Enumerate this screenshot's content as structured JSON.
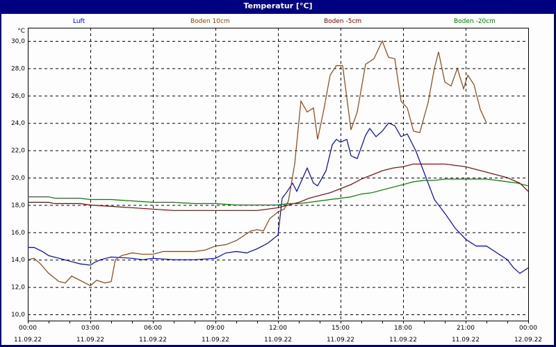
{
  "window": {
    "title": "Temperatur [°C]"
  },
  "chart_data": {
    "type": "line",
    "title": "Temperatur [°C]",
    "xlabel": "",
    "ylabel": "°C",
    "ylim": [
      10,
      30
    ],
    "yticks": [
      "10,0",
      "12,0",
      "14,0",
      "16,0",
      "18,0",
      "20,0",
      "22,0",
      "24,0",
      "26,0",
      "28,0",
      "30,0"
    ],
    "xlim_hours": [
      0,
      24
    ],
    "xticks": [
      {
        "time": "00:00",
        "date": "11.09.22"
      },
      {
        "time": "03:00",
        "date": "11.09.22"
      },
      {
        "time": "06:00",
        "date": "11.09.22"
      },
      {
        "time": "09:00",
        "date": "11.09.22"
      },
      {
        "time": "12:00",
        "date": "11.09.22"
      },
      {
        "time": "15:00",
        "date": "11.09.22"
      },
      {
        "time": "18:00",
        "date": "11.09.22"
      },
      {
        "time": "21:00",
        "date": "11.09.22"
      },
      {
        "time": "00:00",
        "date": "12.09.22"
      }
    ],
    "grid": true,
    "legend_position": "top",
    "series": [
      {
        "name": "Luft",
        "color": "#0000cc",
        "points": [
          [
            0,
            14.9
          ],
          [
            0.3,
            14.9
          ],
          [
            0.7,
            14.6
          ],
          [
            1.0,
            14.3
          ],
          [
            1.5,
            14.1
          ],
          [
            2.0,
            13.9
          ],
          [
            2.5,
            13.7
          ],
          [
            3.0,
            13.6
          ],
          [
            3.2,
            13.8
          ],
          [
            3.5,
            14.0
          ],
          [
            4.0,
            14.2
          ],
          [
            5.0,
            14.1
          ],
          [
            5.5,
            14.0
          ],
          [
            6.0,
            14.1
          ],
          [
            7.0,
            14.0
          ],
          [
            8.0,
            14.0
          ],
          [
            9.0,
            14.1
          ],
          [
            9.5,
            14.5
          ],
          [
            10.0,
            14.6
          ],
          [
            10.5,
            14.5
          ],
          [
            11.0,
            14.8
          ],
          [
            11.5,
            15.2
          ],
          [
            12.0,
            15.8
          ],
          [
            12.2,
            18.5
          ],
          [
            12.4,
            18.9
          ],
          [
            12.7,
            19.6
          ],
          [
            12.9,
            19.0
          ],
          [
            13.4,
            20.7
          ],
          [
            13.7,
            19.6
          ],
          [
            13.9,
            19.4
          ],
          [
            14.3,
            20.5
          ],
          [
            14.6,
            22.4
          ],
          [
            14.8,
            22.8
          ],
          [
            15.0,
            22.6
          ],
          [
            15.3,
            22.8
          ],
          [
            15.5,
            21.6
          ],
          [
            15.8,
            21.4
          ],
          [
            16.2,
            23.1
          ],
          [
            16.4,
            23.6
          ],
          [
            16.7,
            23.0
          ],
          [
            17.0,
            23.4
          ],
          [
            17.3,
            24.0
          ],
          [
            17.6,
            23.8
          ],
          [
            17.9,
            23.0
          ],
          [
            18.2,
            23.2
          ],
          [
            18.6,
            22.0
          ],
          [
            19.1,
            20.0
          ],
          [
            19.5,
            18.4
          ],
          [
            20.0,
            17.4
          ],
          [
            20.5,
            16.3
          ],
          [
            21.0,
            15.5
          ],
          [
            21.5,
            15.0
          ],
          [
            22.0,
            15.0
          ],
          [
            22.5,
            14.5
          ],
          [
            23.0,
            14.0
          ],
          [
            23.3,
            13.4
          ],
          [
            23.6,
            13.0
          ],
          [
            24.0,
            13.4
          ]
        ]
      },
      {
        "name": "Boden 10cm",
        "color": "#8b4513",
        "points": [
          [
            0,
            14.0
          ],
          [
            0.3,
            14.1
          ],
          [
            0.6,
            13.7
          ],
          [
            1.0,
            13.0
          ],
          [
            1.5,
            12.4
          ],
          [
            1.8,
            12.3
          ],
          [
            2.1,
            12.8
          ],
          [
            2.5,
            12.5
          ],
          [
            3.0,
            12.1
          ],
          [
            3.3,
            12.5
          ],
          [
            3.7,
            12.3
          ],
          [
            4.0,
            12.4
          ],
          [
            4.2,
            14.0
          ],
          [
            4.5,
            14.3
          ],
          [
            5.0,
            14.5
          ],
          [
            5.5,
            14.4
          ],
          [
            6.0,
            14.4
          ],
          [
            6.5,
            14.6
          ],
          [
            7.0,
            14.6
          ],
          [
            7.5,
            14.6
          ],
          [
            8.0,
            14.6
          ],
          [
            8.5,
            14.7
          ],
          [
            9.0,
            15.0
          ],
          [
            9.5,
            15.1
          ],
          [
            10.0,
            15.4
          ],
          [
            10.3,
            15.7
          ],
          [
            10.7,
            16.1
          ],
          [
            11.0,
            16.2
          ],
          [
            11.3,
            16.1
          ],
          [
            11.6,
            17.0
          ],
          [
            12.0,
            17.5
          ],
          [
            12.3,
            17.7
          ],
          [
            12.5,
            18.3
          ],
          [
            12.8,
            21.0
          ],
          [
            13.1,
            25.6
          ],
          [
            13.4,
            24.8
          ],
          [
            13.7,
            25.1
          ],
          [
            13.9,
            22.8
          ],
          [
            14.2,
            25.0
          ],
          [
            14.5,
            27.5
          ],
          [
            14.8,
            28.2
          ],
          [
            15.1,
            28.2
          ],
          [
            15.5,
            23.5
          ],
          [
            15.8,
            24.8
          ],
          [
            16.2,
            28.3
          ],
          [
            16.6,
            28.7
          ],
          [
            17.0,
            30.0
          ],
          [
            17.3,
            28.8
          ],
          [
            17.6,
            28.7
          ],
          [
            17.9,
            25.6
          ],
          [
            18.2,
            25.1
          ],
          [
            18.5,
            23.4
          ],
          [
            18.8,
            23.3
          ],
          [
            19.2,
            25.5
          ],
          [
            19.5,
            28.0
          ],
          [
            19.7,
            29.2
          ],
          [
            20.0,
            27.0
          ],
          [
            20.3,
            26.7
          ],
          [
            20.6,
            28.0
          ],
          [
            20.9,
            26.5
          ],
          [
            21.1,
            27.5
          ],
          [
            21.4,
            26.8
          ],
          [
            21.7,
            25.0
          ],
          [
            22.0,
            24.0
          ]
        ]
      },
      {
        "name": "Boden -5cm",
        "color": "#800000",
        "points": [
          [
            0,
            18.2
          ],
          [
            1.0,
            18.2
          ],
          [
            1.3,
            18.1
          ],
          [
            2.5,
            18.1
          ],
          [
            3.0,
            18.0
          ],
          [
            4.0,
            17.9
          ],
          [
            5.0,
            17.8
          ],
          [
            6.0,
            17.7
          ],
          [
            7.0,
            17.6
          ],
          [
            8.0,
            17.6
          ],
          [
            9.0,
            17.6
          ],
          [
            10.0,
            17.6
          ],
          [
            11.0,
            17.6
          ],
          [
            11.5,
            17.7
          ],
          [
            12.0,
            17.8
          ],
          [
            12.5,
            18.0
          ],
          [
            13.0,
            18.2
          ],
          [
            13.5,
            18.5
          ],
          [
            14.0,
            18.7
          ],
          [
            14.5,
            18.9
          ],
          [
            15.0,
            19.2
          ],
          [
            15.5,
            19.5
          ],
          [
            16.0,
            19.9
          ],
          [
            16.5,
            20.2
          ],
          [
            17.0,
            20.5
          ],
          [
            17.5,
            20.7
          ],
          [
            18.0,
            20.8
          ],
          [
            18.5,
            21.0
          ],
          [
            19.0,
            21.0
          ],
          [
            20.0,
            21.0
          ],
          [
            20.5,
            20.9
          ],
          [
            21.0,
            20.8
          ],
          [
            21.5,
            20.6
          ],
          [
            22.0,
            20.4
          ],
          [
            22.5,
            20.2
          ],
          [
            23.0,
            20.0
          ],
          [
            23.3,
            19.8
          ],
          [
            23.6,
            19.6
          ],
          [
            24.0,
            19.0
          ]
        ]
      },
      {
        "name": "Boden -20cm",
        "color": "#008000",
        "points": [
          [
            0,
            18.6
          ],
          [
            1.0,
            18.6
          ],
          [
            1.3,
            18.5
          ],
          [
            2.5,
            18.5
          ],
          [
            3.0,
            18.4
          ],
          [
            4.0,
            18.4
          ],
          [
            5.0,
            18.3
          ],
          [
            6.0,
            18.2
          ],
          [
            7.0,
            18.2
          ],
          [
            8.0,
            18.1
          ],
          [
            9.0,
            18.1
          ],
          [
            10.0,
            18.0
          ],
          [
            11.0,
            18.0
          ],
          [
            12.0,
            18.0
          ],
          [
            12.5,
            18.1
          ],
          [
            13.0,
            18.1
          ],
          [
            13.5,
            18.2
          ],
          [
            14.0,
            18.3
          ],
          [
            14.5,
            18.4
          ],
          [
            15.0,
            18.5
          ],
          [
            15.5,
            18.6
          ],
          [
            16.0,
            18.8
          ],
          [
            16.5,
            18.9
          ],
          [
            17.0,
            19.1
          ],
          [
            17.5,
            19.3
          ],
          [
            18.0,
            19.5
          ],
          [
            18.5,
            19.7
          ],
          [
            19.0,
            19.8
          ],
          [
            19.5,
            19.8
          ],
          [
            20.0,
            19.9
          ],
          [
            21.0,
            19.9
          ],
          [
            22.0,
            19.9
          ],
          [
            22.5,
            19.8
          ],
          [
            23.0,
            19.7
          ],
          [
            23.5,
            19.6
          ],
          [
            24.0,
            19.4
          ]
        ]
      }
    ]
  }
}
